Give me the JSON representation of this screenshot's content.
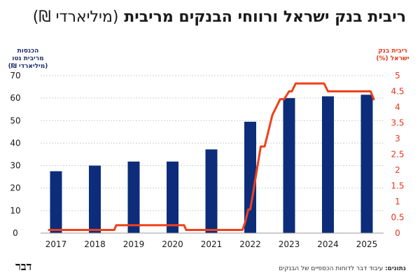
{
  "header": {
    "title": "ריבית בנק ישראל ורווחי הבנקים מריבית",
    "title_unit": "(מיליארדי ₪)"
  },
  "footer": {
    "source_label": "נתונים:",
    "source_text": "עיבוד דבר לדוחות הכספיים של הבנקים",
    "logo": "דבר"
  },
  "colors": {
    "bars": "#0d2d7a",
    "line": "#f0401a",
    "left_axis": "#1f2f6b",
    "right_axis": "#e8371a",
    "grid": "#cfcfcf"
  },
  "chart_data": {
    "type": "bar",
    "categories": [
      "2017",
      "2018",
      "2019",
      "2020",
      "2021",
      "2022",
      "2023",
      "2024",
      "2025"
    ],
    "series": [
      {
        "name": "הכנסות מריבית נטו (מיליארדי ₪)",
        "type": "bar",
        "axis": "left",
        "values": [
          27.5,
          30,
          31.8,
          31.8,
          37.2,
          49.5,
          60,
          60.8,
          61.5
        ]
      },
      {
        "name": "ריבית בנק ישראל (%)",
        "type": "line",
        "axis": "right",
        "x": [
          2016.8,
          2018.5,
          2018.55,
          2020.3,
          2020.35,
          2021.8,
          2021.87,
          2021.95,
          2022.0,
          2022.07,
          2022.17,
          2022.27,
          2022.37,
          2022.47,
          2022.57,
          2022.77,
          2022.87,
          2023.0,
          2023.07,
          2023.17,
          2023.3,
          2023.37,
          2023.5,
          2023.9,
          2024.0,
          2025.1,
          2025.2
        ],
        "values": [
          0.1,
          0.1,
          0.25,
          0.25,
          0.1,
          0.1,
          0.35,
          0.75,
          0.75,
          1.25,
          2.0,
          2.75,
          2.75,
          3.25,
          3.75,
          4.25,
          4.25,
          4.5,
          4.5,
          4.75,
          4.75,
          4.75,
          4.75,
          4.75,
          4.5,
          4.5,
          4.25
        ]
      }
    ],
    "left_axis": {
      "title_lines": [
        "הכנסות",
        "מריבית נטו",
        "(מיליארדי ₪)"
      ],
      "ylim": [
        0,
        70
      ],
      "ticks": [
        "0",
        "10",
        "20",
        "30",
        "40",
        "50",
        "60",
        "70"
      ]
    },
    "right_axis": {
      "title_lines": [
        "ריבית בנק",
        "ישראל (%)"
      ],
      "ylim": [
        0,
        5
      ],
      "ticks": [
        "0",
        "0.5",
        "1",
        "1.5",
        "2",
        "2.5",
        "3",
        "3.5",
        "4",
        "4.5",
        "5"
      ]
    },
    "grid": "horizontal"
  }
}
